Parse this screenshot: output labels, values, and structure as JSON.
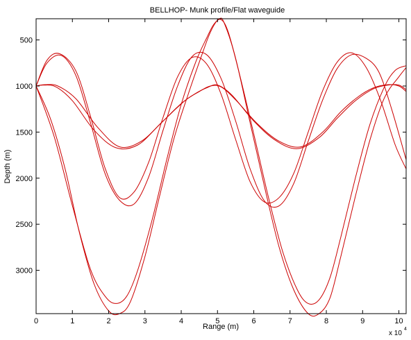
{
  "chart_data": {
    "type": "line",
    "title": "BELLHOP- Munk profile/Flat waveguide",
    "xlabel": "Range (m)",
    "ylabel": "Depth (m)",
    "x_multiplier_label": "x 10",
    "x_multiplier_exp": "4",
    "xlim": [
      0,
      102000
    ],
    "ylim": [
      3470,
      270
    ],
    "y_reversed": true,
    "grid": false,
    "xticks": [
      0,
      10000,
      20000,
      30000,
      40000,
      50000,
      60000,
      70000,
      80000,
      90000,
      100000
    ],
    "xtick_labels": [
      "0",
      "1",
      "2",
      "3",
      "4",
      "5",
      "6",
      "7",
      "8",
      "9",
      "10"
    ],
    "yticks": [
      500,
      1000,
      1500,
      2000,
      2500,
      3000
    ],
    "ytick_labels": [
      "500",
      "1000",
      "1500",
      "2000",
      "2500",
      "3000"
    ],
    "series": [
      {
        "color": "#cc0000",
        "x": [
          0,
          2500,
          6000,
          11000,
          17000,
          23000,
          29000,
          35000,
          41000,
          45000,
          48000,
          51000,
          55000,
          61000,
          67000,
          73000,
          79000,
          84000,
          89000,
          93000,
          97000,
          100000,
          102000
        ],
        "y": [
          1000,
          985,
          1000,
          1140,
          1450,
          1660,
          1600,
          1380,
          1160,
          1060,
          1000,
          1010,
          1150,
          1410,
          1600,
          1660,
          1500,
          1280,
          1110,
          1020,
          985,
          1000,
          1060
        ]
      },
      {
        "color": "#cc0000",
        "x": [
          0,
          2000,
          5500,
          10000,
          16000,
          22000,
          28000,
          34000,
          40000,
          44000,
          47000,
          50000,
          54000,
          60000,
          66000,
          72000,
          78000,
          83000,
          88000,
          93000,
          97000,
          100000,
          102000
        ],
        "y": [
          1000,
          990,
          1010,
          1160,
          1480,
          1670,
          1640,
          1420,
          1190,
          1080,
          1020,
          990,
          1100,
          1380,
          1590,
          1680,
          1560,
          1350,
          1160,
          1030,
          990,
          990,
          1040
        ]
      },
      {
        "color": "#cc0000",
        "x": [
          0,
          3000,
          6500,
          11000,
          15000,
          19000,
          23000,
          27000,
          31000,
          35000,
          39000,
          43000,
          47000,
          51000,
          55000,
          59000,
          63000,
          67000,
          71000,
          75000,
          79000,
          83000,
          87000,
          91000,
          95000,
          99000,
          102000
        ],
        "y": [
          1000,
          720,
          650,
          840,
          1330,
          1890,
          2210,
          2150,
          1830,
          1340,
          900,
          690,
          760,
          1090,
          1580,
          2040,
          2260,
          2210,
          1950,
          1500,
          1050,
          740,
          640,
          800,
          1160,
          1640,
          1900
        ]
      },
      {
        "color": "#cc0000",
        "x": [
          0,
          3000,
          7000,
          11000,
          15000,
          19000,
          23000,
          27000,
          31000,
          35000,
          39000,
          43000,
          47000,
          51000,
          55000,
          59000,
          63000,
          67000,
          71000,
          75000,
          79000,
          83000,
          87000,
          91000,
          94500,
          98000,
          102000
        ],
        "y": [
          1000,
          750,
          670,
          890,
          1400,
          1950,
          2240,
          2280,
          1990,
          1480,
          1000,
          680,
          660,
          920,
          1380,
          1900,
          2250,
          2300,
          2060,
          1600,
          1150,
          810,
          660,
          700,
          850,
          1250,
          1800
        ]
      },
      {
        "color": "#cc0000",
        "x": [
          0,
          5000,
          10000,
          15000,
          19000,
          22000,
          25000,
          28000,
          32000,
          36000,
          40000,
          44000,
          47000,
          49000,
          51000,
          53000,
          56000,
          60000,
          64000,
          68000,
          72000,
          75000,
          78000,
          81000,
          84000,
          88000,
          92000,
          96000,
          99000,
          102000
        ],
        "y": [
          1000,
          1550,
          2300,
          2990,
          3280,
          3360,
          3280,
          3000,
          2450,
          1800,
          1200,
          740,
          480,
          330,
          280,
          420,
          860,
          1520,
          2200,
          2800,
          3210,
          3360,
          3320,
          3080,
          2640,
          2000,
          1420,
          1010,
          830,
          780
        ]
      },
      {
        "color": "#cc0000",
        "x": [
          0,
          4000,
          8000,
          12000,
          16000,
          20000,
          23000,
          26000,
          30000,
          34000,
          38000,
          42000,
          45000,
          48000,
          50500,
          52000,
          55000,
          59000,
          63000,
          67000,
          71000,
          75000,
          78000,
          81000,
          84000,
          88000,
          92000,
          96000,
          100000,
          102000
        ],
        "y": [
          1000,
          1360,
          1900,
          2600,
          3150,
          3440,
          3470,
          3340,
          2850,
          2200,
          1570,
          1080,
          740,
          420,
          270,
          330,
          700,
          1400,
          2100,
          2750,
          3210,
          3470,
          3470,
          3300,
          2850,
          2200,
          1590,
          1130,
          900,
          800
        ]
      }
    ]
  }
}
